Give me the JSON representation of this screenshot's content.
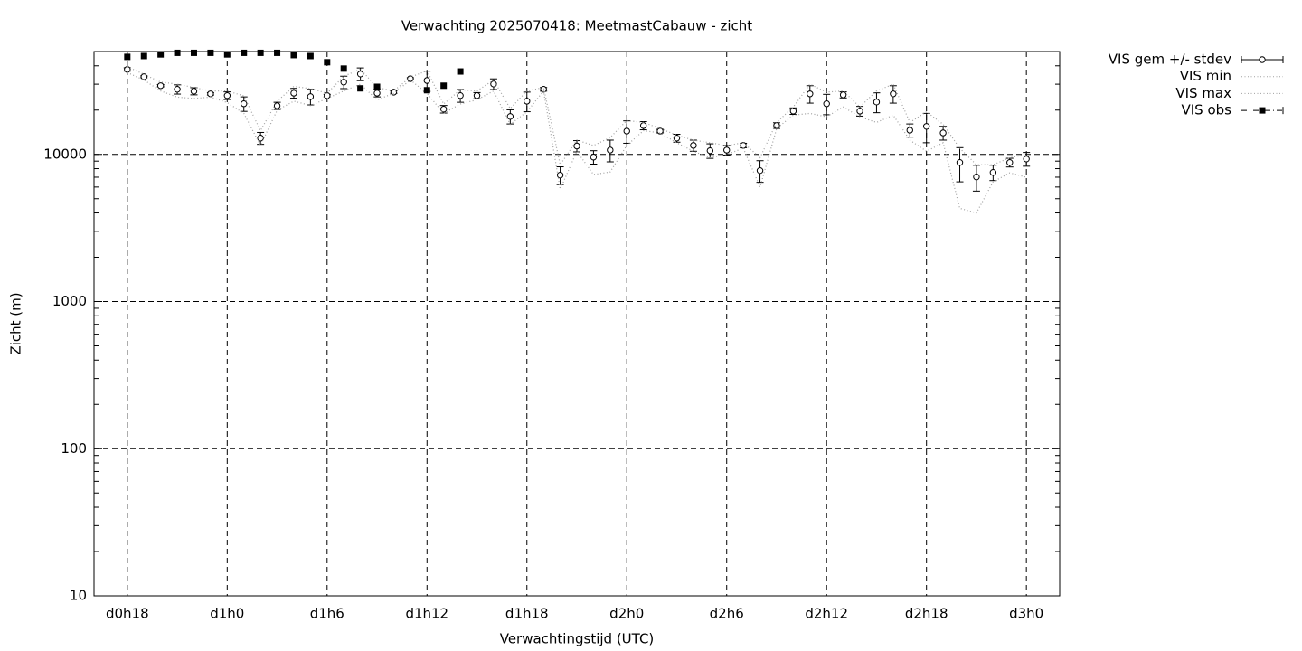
{
  "chart_data": {
    "type": "errorline",
    "title": "Verwachting 2025070418: MeetmastCabauw - zicht",
    "xlabel": "Verwachtingstijd (UTC)",
    "ylabel": "Zicht (m)",
    "yscale": "log",
    "grid": true,
    "legend": "outside-right",
    "xlim": [
      16,
      74
    ],
    "xticks": [
      {
        "value": 18,
        "label": "d0h18"
      },
      {
        "value": 24,
        "label": "d1h0"
      },
      {
        "value": 30,
        "label": "d1h6"
      },
      {
        "value": 36,
        "label": "d1h12"
      },
      {
        "value": 42,
        "label": "d1h18"
      },
      {
        "value": 48,
        "label": "d2h0"
      },
      {
        "value": 54,
        "label": "d2h6"
      },
      {
        "value": 60,
        "label": "d2h12"
      },
      {
        "value": 66,
        "label": "d2h18"
      },
      {
        "value": 72,
        "label": "d3h0"
      }
    ],
    "ylim": [
      10,
      50000
    ],
    "yticks": [
      10,
      100,
      1000,
      10000
    ],
    "x": [
      18,
      19,
      20,
      21,
      22,
      23,
      24,
      25,
      26,
      27,
      28,
      29,
      30,
      31,
      32,
      33,
      34,
      35,
      36,
      37,
      38,
      39,
      40,
      41,
      42,
      43,
      44,
      45,
      46,
      47,
      48,
      49,
      50,
      51,
      52,
      53,
      54,
      55,
      56,
      57,
      58,
      59,
      60,
      61,
      62,
      63,
      64,
      65,
      66,
      67,
      68,
      69,
      70,
      71,
      72
    ],
    "series": [
      {
        "name": "VIS gem +/- stdev",
        "color": "#000000",
        "style": "errorbars",
        "values": [
          37800,
          33700,
          29300,
          27700,
          26900,
          25800,
          25100,
          22100,
          12900,
          21400,
          26100,
          24700,
          25100,
          31000,
          35200,
          26100,
          26500,
          32700,
          31800,
          20300,
          25100,
          25100,
          30100,
          18100,
          23000,
          27700,
          7230,
          11400,
          9590,
          10700,
          14400,
          15700,
          14400,
          12900,
          11500,
          10600,
          10700,
          11500,
          7760,
          15700,
          19700,
          25800,
          22100,
          25400,
          19700,
          22700,
          25800,
          14600,
          15500,
          14000,
          8810,
          7030,
          7540,
          8810,
          9310
        ],
        "errors": [
          1000,
          500,
          500,
          2000,
          1500,
          500,
          1500,
          2500,
          1200,
          1200,
          2000,
          3000,
          500,
          3000,
          3500,
          1500,
          500,
          500,
          5000,
          1200,
          2500,
          1200,
          2500,
          2000,
          3500,
          800,
          1000,
          1000,
          1000,
          1800,
          2500,
          1000,
          400,
          800,
          1000,
          1200,
          800,
          400,
          1300,
          700,
          1000,
          3500,
          3500,
          1200,
          1500,
          3500,
          3500,
          1500,
          3500,
          1500,
          2300,
          1400,
          900,
          600,
          1000
        ]
      },
      {
        "name": "VIS min",
        "color": "#a0a0a0",
        "style": "dotted",
        "values": [
          36000,
          32000,
          27000,
          24500,
          24000,
          24500,
          22500,
          19000,
          11500,
          20000,
          23000,
          21500,
          24000,
          27000,
          30000,
          23500,
          26000,
          32000,
          26000,
          19000,
          22000,
          23500,
          27000,
          16000,
          19500,
          27000,
          5800,
          10500,
          7300,
          7600,
          11500,
          14500,
          14000,
          12000,
          10500,
          9500,
          10000,
          11000,
          6000,
          15000,
          18500,
          19000,
          18000,
          21000,
          18000,
          16500,
          18500,
          12500,
          10500,
          12000,
          4300,
          4000,
          6500,
          7500,
          7000
        ]
      },
      {
        "name": "VIS max",
        "color": "#a0a0a0",
        "style": "dotted",
        "values": [
          39500,
          35000,
          31000,
          30000,
          28500,
          27000,
          27000,
          25000,
          14500,
          23000,
          29000,
          28000,
          26000,
          34000,
          38000,
          28500,
          27000,
          33500,
          37000,
          22000,
          27500,
          27000,
          32000,
          20500,
          27000,
          28500,
          8500,
          12500,
          11500,
          13000,
          17000,
          16500,
          15000,
          13500,
          12500,
          12000,
          11500,
          12000,
          9500,
          16500,
          21000,
          30000,
          26500,
          27000,
          21000,
          27000,
          30000,
          16500,
          19500,
          16000,
          11000,
          8500,
          8500,
          9500,
          10000
        ]
      },
      {
        "name": "VIS obs",
        "color": "#000000",
        "style": "squares",
        "values": [
          46000,
          46600,
          47800,
          49000,
          49000,
          49000,
          47800,
          49000,
          49000,
          49000,
          47300,
          46600,
          42300,
          38300,
          28100,
          28800,
          null,
          null,
          27300,
          29300,
          36600,
          null,
          null,
          null,
          null,
          null,
          null,
          null,
          null,
          null,
          null,
          null,
          null,
          null,
          null,
          null,
          null,
          null,
          null,
          null,
          null,
          null,
          null,
          null,
          null,
          null,
          null,
          null,
          null,
          null,
          null,
          null,
          null,
          null,
          null
        ]
      }
    ]
  }
}
